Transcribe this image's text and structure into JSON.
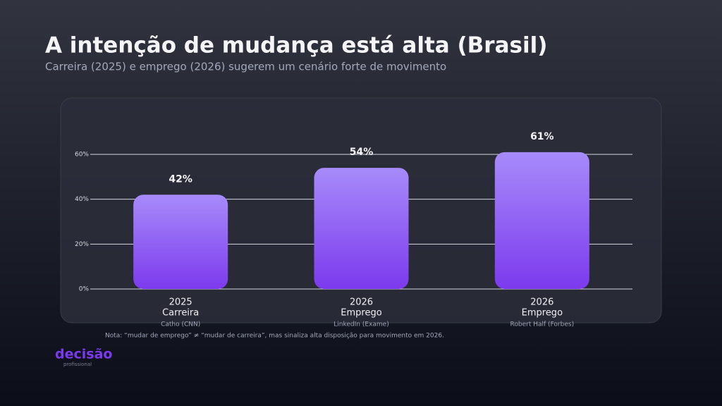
{
  "chart_data": {
    "type": "bar",
    "title": "A intenção de mudança está alta (Brasil)",
    "subtitle": "Carreira (2025) e emprego (2026) sugerem um cenário forte de movimento",
    "categories": [
      "2025",
      "2026",
      "2026"
    ],
    "subcategories": [
      "Carreira",
      "Emprego",
      "Emprego"
    ],
    "sources": [
      "Catho (CNN)",
      "LinkedIn (Exame)",
      "Robert Half (Forbes)"
    ],
    "values": [
      42,
      54,
      61
    ],
    "value_labels": [
      "42%",
      "54%",
      "61%"
    ],
    "color": "#8b5cf6",
    "ylim": [
      0,
      60
    ],
    "yticks": [
      {
        "value": 0,
        "label": "0%"
      },
      {
        "value": 20,
        "label": "20%"
      },
      {
        "value": 40,
        "label": "40%"
      },
      {
        "value": 60,
        "label": "60%"
      }
    ],
    "grid": true,
    "note": "Nota: “mudar de emprego” ≠ “mudar de carreira”, mas sinaliza alta disposição para movimento em 2026."
  },
  "brand": {
    "name": "decisão",
    "tagline": "profissional"
  }
}
